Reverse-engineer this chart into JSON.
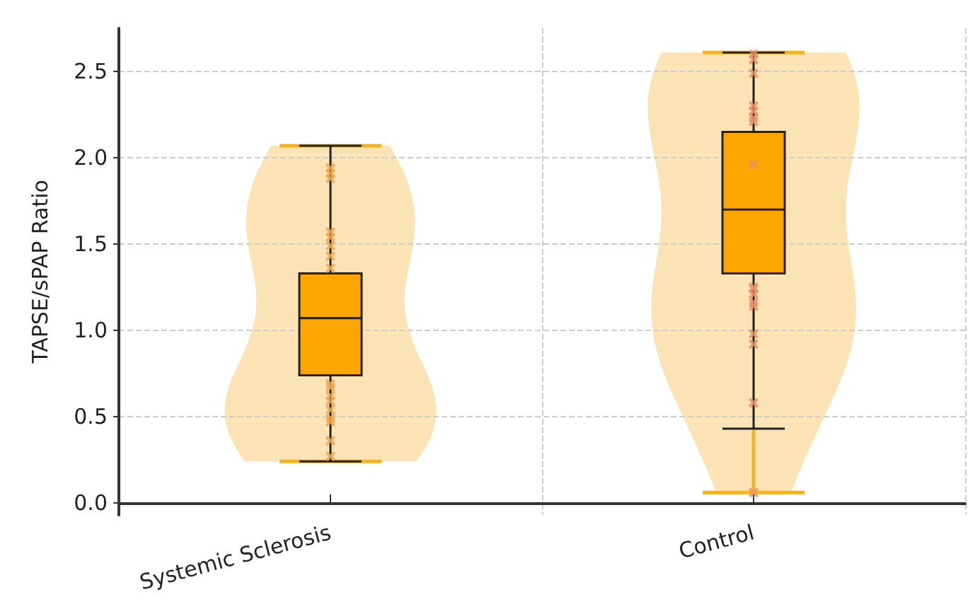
{
  "chart_data": {
    "type": "box",
    "ylabel": "TAPSE/sPAP Ratio",
    "categories": [
      "Systemic Sclerosis",
      "Control"
    ],
    "ylim": [
      -0.07,
      2.75
    ],
    "yticks": [
      {
        "value": 0,
        "label": "0.0"
      },
      0.5,
      {
        "value": 1,
        "label": "1.0"
      },
      1.5,
      {
        "value": 2,
        "label": "2.0"
      },
      2.5
    ],
    "grid": true,
    "marker": "cross",
    "series": [
      {
        "type": "box",
        "color": "#ffa500",
        "boxes": [
          {
            "low": 0.24,
            "q1": 0.74,
            "median": 1.07,
            "q3": 1.33,
            "high": 2.07
          },
          {
            "low": 0.43,
            "q1": 1.33,
            "median": 1.7,
            "q3": 2.15,
            "high": 2.61
          }
        ]
      },
      {
        "type": "scatter",
        "color": "#f0a850",
        "x": [
          "Systemic Sclerosis",
          "Systemic Sclerosis",
          "Systemic Sclerosis",
          "Systemic Sclerosis",
          "Systemic Sclerosis",
          "Systemic Sclerosis",
          "Systemic Sclerosis",
          "Systemic Sclerosis",
          "Systemic Sclerosis",
          "Systemic Sclerosis",
          "Systemic Sclerosis",
          "Systemic Sclerosis",
          "Systemic Sclerosis",
          "Systemic Sclerosis",
          "Systemic Sclerosis",
          "Systemic Sclerosis",
          "Systemic Sclerosis"
        ],
        "values": [
          1.88,
          1.91,
          1.94,
          1.54,
          1.49,
          1.57,
          1.43,
          1.36,
          0.67,
          0.69,
          0.59,
          0.49,
          0.47,
          0.62,
          0.54,
          0.36,
          0.27
        ]
      },
      {
        "type": "scatter",
        "color": "#e8906a",
        "x": [
          "Control",
          "Control",
          "Control",
          "Control",
          "Control",
          "Control",
          "Control",
          "Control",
          "Control",
          "Control",
          "Control",
          "Control",
          "Control",
          "Control",
          "Control",
          "Control",
          "Control"
        ],
        "values": [
          2.6,
          2.57,
          2.49,
          2.3,
          2.27,
          2.23,
          2.21,
          1.96,
          1.25,
          1.21,
          1.24,
          1.14,
          1.16,
          0.98,
          0.92,
          0.58,
          0.06
        ]
      }
    ]
  }
}
